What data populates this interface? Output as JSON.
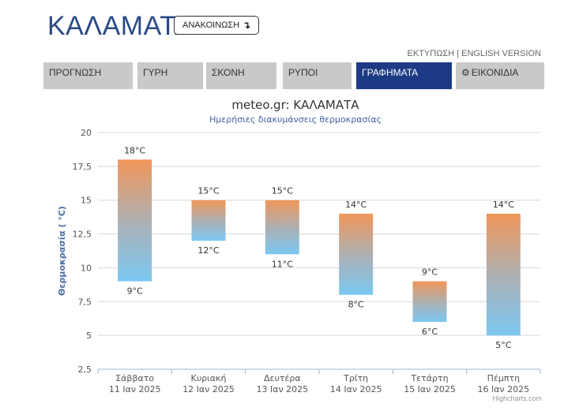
{
  "header": {
    "city": "ΚΑΛΑΜΑΤΑ",
    "announce_label": "ΑΝΑΚΟΙΝΩΣΗ",
    "announce_icon": "↴"
  },
  "links": {
    "print": "ΕΚΤΥΠΩΣΗ",
    "separator": " | ",
    "english": "ENGLISH VERSION"
  },
  "tabs": [
    {
      "label": "ΠΡΟΓΝΩΣΗ",
      "active": false
    },
    {
      "label": "ΓΥΡΗ",
      "active": false
    },
    {
      "label": "ΣΚΟΝΗ",
      "active": false
    },
    {
      "label": "ΡΥΠΟΙ",
      "active": false
    },
    {
      "label": "ΓΡΑΦΗΜΑΤΑ",
      "active": true
    },
    {
      "label": "ΕΙΚΟΝΙΔΙΑ",
      "active": false,
      "icon": "gear-icon"
    }
  ],
  "chart_data": {
    "type": "bar",
    "subtype": "floating-range",
    "title": "meteo.gr: ΚΑΛΑΜΑΤΑ",
    "subtitle": "Ημερήσιες διακυμάνσεις θερμοκρασίας",
    "ylabel": "Θερμοκρασία ( °C)",
    "ylim": [
      2.5,
      20
    ],
    "yticks": [
      "2,5",
      "5",
      "7,5",
      "10",
      "12,5",
      "15",
      "17,5",
      "20"
    ],
    "grid": true,
    "categories": [
      {
        "day": "Σάββατο",
        "date": "11 Ιαν 2025"
      },
      {
        "day": "Κυριακή",
        "date": "12 Ιαν 2025"
      },
      {
        "day": "Δευτέρα",
        "date": "13 Ιαν 2025"
      },
      {
        "day": "Τρίτη",
        "date": "14 Ιαν 2025"
      },
      {
        "day": "Τετάρτη",
        "date": "15 Ιαν 2025"
      },
      {
        "day": "Πέμπτη",
        "date": "16 Ιαν 2025"
      }
    ],
    "series": [
      {
        "low": [
          9,
          12,
          11,
          8,
          6,
          5
        ],
        "high": [
          18,
          15,
          15,
          14,
          9,
          14
        ]
      }
    ],
    "low_labels": [
      "9°C",
      "12°C",
      "11°C",
      "8°C",
      "6°C",
      "5°C"
    ],
    "high_labels": [
      "18°C",
      "15°C",
      "15°C",
      "14°C",
      "9°C",
      "14°C"
    ],
    "colors": {
      "warm": "#f0965a",
      "cool": "#7cc8f2",
      "title": "#333333",
      "subtitle": "#3d5f9c",
      "axis_title": "#4c6ea6"
    },
    "credits": "Highcharts.com"
  }
}
